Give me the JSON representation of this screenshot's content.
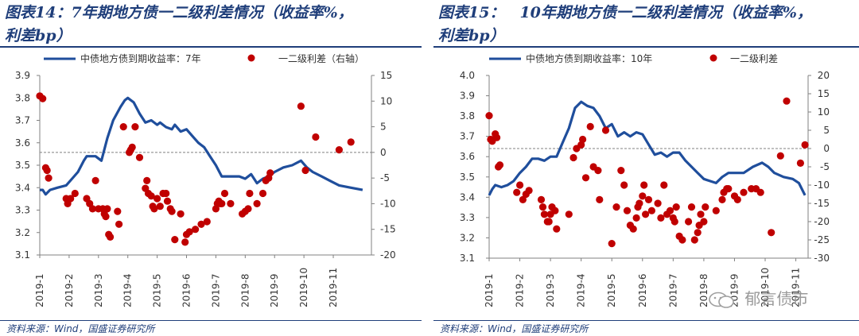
{
  "panels": [
    {
      "title_line1": "图表14：7年期地方债一二级利差情况（收益率%，",
      "title_line2": "利差bp）",
      "legend_line": "中债地方债到期收益率：7年",
      "legend_dot": "一二级利差（右轴）",
      "source": "资料来源：Wind，国盛证券研究所"
    },
    {
      "title_line1": "图表15：　10年期地方债一二级利差情况（收益率%，",
      "title_line2": "利差bp）",
      "legend_line": "中债地方债到期收益率：10年",
      "legend_dot": "一二级利差",
      "source": "资料来源：Wind，国盛证券研究所"
    }
  ],
  "watermark": "郁言债市",
  "colors": {
    "line": "#1f4e9c",
    "dots": "#c00000",
    "title": "#1f3e7a",
    "zero_line": "#808080"
  },
  "chart_data": [
    {
      "type": "line+scatter",
      "title": "图表14：7年期地方债一二级利差情况（收益率%，利差bp）",
      "x_tick_labels": [
        "2019-1",
        "2019-2",
        "2019-3",
        "2019-4",
        "2019-5",
        "2019-6",
        "2019-7",
        "2019-8",
        "2019-9",
        "2019-10",
        "2019-11"
      ],
      "x_range_months": [
        1,
        12.3
      ],
      "y_left": {
        "ticks": [
          "3.1",
          "3.2",
          "3.3",
          "3.4",
          "3.5",
          "3.6",
          "3.7",
          "3.8",
          "3.9"
        ],
        "range": [
          3.1,
          3.9
        ]
      },
      "y_right": {
        "ticks": [
          "-20",
          "-15",
          "-10",
          "-5",
          "0",
          "5",
          "10",
          "15"
        ],
        "range": [
          -20,
          15
        ]
      },
      "reference_line_right": 0,
      "series": [
        {
          "name": "中债地方债到期收益率：7年",
          "axis": "left",
          "points": [
            [
              1.0,
              3.39
            ],
            [
              1.1,
              3.39
            ],
            [
              1.2,
              3.37
            ],
            [
              1.35,
              3.39
            ],
            [
              1.6,
              3.4
            ],
            [
              1.9,
              3.41
            ],
            [
              2.1,
              3.44
            ],
            [
              2.3,
              3.47
            ],
            [
              2.5,
              3.52
            ],
            [
              2.6,
              3.54
            ],
            [
              2.9,
              3.54
            ],
            [
              3.1,
              3.52
            ],
            [
              3.3,
              3.62
            ],
            [
              3.5,
              3.7
            ],
            [
              3.75,
              3.76
            ],
            [
              3.9,
              3.79
            ],
            [
              4.0,
              3.8
            ],
            [
              4.2,
              3.78
            ],
            [
              4.4,
              3.73
            ],
            [
              4.6,
              3.69
            ],
            [
              4.8,
              3.7
            ],
            [
              5.0,
              3.68
            ],
            [
              5.1,
              3.69
            ],
            [
              5.3,
              3.67
            ],
            [
              5.5,
              3.66
            ],
            [
              5.6,
              3.68
            ],
            [
              5.8,
              3.65
            ],
            [
              6.0,
              3.66
            ],
            [
              6.2,
              3.63
            ],
            [
              6.4,
              3.6
            ],
            [
              6.6,
              3.58
            ],
            [
              6.8,
              3.54
            ],
            [
              7.0,
              3.5
            ],
            [
              7.2,
              3.45
            ],
            [
              7.5,
              3.45
            ],
            [
              7.8,
              3.45
            ],
            [
              8.0,
              3.44
            ],
            [
              8.2,
              3.46
            ],
            [
              8.4,
              3.42
            ],
            [
              8.6,
              3.44
            ],
            [
              8.8,
              3.45
            ],
            [
              9.0,
              3.47
            ],
            [
              9.3,
              3.49
            ],
            [
              9.6,
              3.5
            ],
            [
              9.9,
              3.52
            ],
            [
              10.1,
              3.49
            ],
            [
              10.3,
              3.47
            ],
            [
              10.6,
              3.45
            ],
            [
              10.9,
              3.43
            ],
            [
              11.2,
              3.41
            ],
            [
              11.6,
              3.4
            ],
            [
              12.0,
              3.39
            ]
          ]
        },
        {
          "name": "一二级利差（右轴）",
          "axis": "right",
          "points": [
            [
              1.0,
              11
            ],
            [
              1.1,
              10.5
            ],
            [
              1.2,
              -3
            ],
            [
              1.25,
              -3.5
            ],
            [
              1.3,
              -5
            ],
            [
              1.9,
              -9
            ],
            [
              1.95,
              -10
            ],
            [
              2.05,
              -9
            ],
            [
              2.2,
              -8
            ],
            [
              2.6,
              -9
            ],
            [
              2.7,
              -10
            ],
            [
              2.8,
              -11
            ],
            [
              2.9,
              -5.5
            ],
            [
              3.0,
              -11
            ],
            [
              3.15,
              -11
            ],
            [
              3.2,
              -12
            ],
            [
              3.25,
              -12.5
            ],
            [
              3.3,
              -11
            ],
            [
              3.35,
              -16
            ],
            [
              3.4,
              -16.5
            ],
            [
              3.65,
              -11.5
            ],
            [
              3.7,
              -14
            ],
            [
              3.85,
              5
            ],
            [
              4.05,
              0
            ],
            [
              4.1,
              0.5
            ],
            [
              4.15,
              1
            ],
            [
              4.25,
              5
            ],
            [
              4.4,
              -1
            ],
            [
              4.6,
              -7
            ],
            [
              4.65,
              -5.5
            ],
            [
              4.7,
              -8
            ],
            [
              4.8,
              -8.5
            ],
            [
              4.85,
              -10.5
            ],
            [
              4.9,
              -11
            ],
            [
              5.0,
              -9
            ],
            [
              5.1,
              -10.5
            ],
            [
              5.2,
              -8
            ],
            [
              5.3,
              -8
            ],
            [
              5.35,
              -9.5
            ],
            [
              5.45,
              -11
            ],
            [
              5.5,
              -11.5
            ],
            [
              5.6,
              -17
            ],
            [
              5.8,
              -12
            ],
            [
              5.95,
              -17.5
            ],
            [
              6.0,
              -16
            ],
            [
              6.1,
              -15.5
            ],
            [
              6.3,
              -15
            ],
            [
              6.5,
              -14
            ],
            [
              6.7,
              -13.5
            ],
            [
              7.0,
              -11
            ],
            [
              7.05,
              -10
            ],
            [
              7.1,
              -9.5
            ],
            [
              7.15,
              -10
            ],
            [
              7.2,
              -10
            ],
            [
              7.3,
              -8
            ],
            [
              7.5,
              -10
            ],
            [
              7.9,
              -12
            ],
            [
              8.0,
              -11.5
            ],
            [
              8.1,
              -11
            ],
            [
              8.15,
              -8
            ],
            [
              8.4,
              -10
            ],
            [
              8.6,
              -8
            ],
            [
              8.7,
              -5.5
            ],
            [
              8.8,
              -5
            ],
            [
              8.85,
              -4
            ],
            [
              9.9,
              9
            ],
            [
              10.05,
              -3.5
            ],
            [
              10.4,
              3
            ],
            [
              11.2,
              0.5
            ],
            [
              11.6,
              2
            ]
          ]
        }
      ]
    },
    {
      "type": "line+scatter",
      "title": "图表15：10年期地方债一二级利差情况（收益率%，利差bp）",
      "x_tick_labels": [
        "2019-1",
        "2019-2",
        "2019-3",
        "2019-4",
        "2019-5",
        "2019-6",
        "2019-7",
        "2019-8",
        "2019-9",
        "2019-10",
        "2019-11"
      ],
      "x_range_months": [
        1,
        11.4
      ],
      "y_left": {
        "ticks": [
          "3.1",
          "3.2",
          "3.3",
          "3.4",
          "3.5",
          "3.6",
          "3.7",
          "3.8",
          "3.9",
          "4.0"
        ],
        "range": [
          3.1,
          4.0
        ]
      },
      "y_right": {
        "ticks": [
          "-30",
          "-25",
          "-20",
          "-15",
          "-10",
          "-5",
          "0",
          "5",
          "10",
          "15",
          "20"
        ],
        "range": [
          -30,
          20
        ]
      },
      "reference_line_right": 0,
      "series": [
        {
          "name": "中债地方债到期收益率：10年",
          "axis": "left",
          "points": [
            [
              1.0,
              3.41
            ],
            [
              1.1,
              3.44
            ],
            [
              1.2,
              3.46
            ],
            [
              1.4,
              3.45
            ],
            [
              1.6,
              3.46
            ],
            [
              1.8,
              3.48
            ],
            [
              2.0,
              3.52
            ],
            [
              2.2,
              3.55
            ],
            [
              2.4,
              3.59
            ],
            [
              2.6,
              3.59
            ],
            [
              2.8,
              3.58
            ],
            [
              3.0,
              3.6
            ],
            [
              3.2,
              3.6
            ],
            [
              3.4,
              3.67
            ],
            [
              3.6,
              3.74
            ],
            [
              3.8,
              3.84
            ],
            [
              4.0,
              3.87
            ],
            [
              4.2,
              3.85
            ],
            [
              4.4,
              3.84
            ],
            [
              4.6,
              3.8
            ],
            [
              4.8,
              3.74
            ],
            [
              5.0,
              3.76
            ],
            [
              5.2,
              3.7
            ],
            [
              5.4,
              3.72
            ],
            [
              5.6,
              3.7
            ],
            [
              5.8,
              3.72
            ],
            [
              6.0,
              3.71
            ],
            [
              6.2,
              3.66
            ],
            [
              6.4,
              3.61
            ],
            [
              6.6,
              3.62
            ],
            [
              6.8,
              3.6
            ],
            [
              7.0,
              3.62
            ],
            [
              7.2,
              3.62
            ],
            [
              7.4,
              3.58
            ],
            [
              7.6,
              3.55
            ],
            [
              7.8,
              3.52
            ],
            [
              8.0,
              3.49
            ],
            [
              8.2,
              3.48
            ],
            [
              8.4,
              3.47
            ],
            [
              8.6,
              3.5
            ],
            [
              8.8,
              3.52
            ],
            [
              9.0,
              3.52
            ],
            [
              9.3,
              3.52
            ],
            [
              9.6,
              3.55
            ],
            [
              9.9,
              3.57
            ],
            [
              10.1,
              3.55
            ],
            [
              10.3,
              3.52
            ],
            [
              10.6,
              3.5
            ],
            [
              10.9,
              3.49
            ],
            [
              11.1,
              3.47
            ],
            [
              11.3,
              3.41
            ]
          ]
        },
        {
          "name": "一二级利差",
          "axis": "left_right",
          "points": [
            [
              1.0,
              9
            ],
            [
              1.05,
              2.5
            ],
            [
              1.1,
              2
            ],
            [
              1.2,
              4
            ],
            [
              1.25,
              3
            ],
            [
              1.3,
              -5
            ],
            [
              1.35,
              -4.5
            ],
            [
              1.9,
              -12
            ],
            [
              2.0,
              -10
            ],
            [
              2.1,
              -14
            ],
            [
              2.2,
              -12.5
            ],
            [
              2.3,
              -11.5
            ],
            [
              2.7,
              -14
            ],
            [
              2.75,
              -16
            ],
            [
              2.8,
              -18
            ],
            [
              2.9,
              -20
            ],
            [
              2.95,
              -20
            ],
            [
              3.0,
              -18
            ],
            [
              3.05,
              -16
            ],
            [
              3.15,
              -17
            ],
            [
              3.2,
              -22
            ],
            [
              3.6,
              -18
            ],
            [
              3.75,
              -2.5
            ],
            [
              3.85,
              0
            ],
            [
              4.0,
              1
            ],
            [
              4.05,
              2.5
            ],
            [
              4.15,
              -8
            ],
            [
              4.3,
              6
            ],
            [
              4.4,
              -5
            ],
            [
              4.55,
              -6
            ],
            [
              4.6,
              -14
            ],
            [
              4.8,
              5
            ],
            [
              5.0,
              -26
            ],
            [
              5.15,
              -16
            ],
            [
              5.3,
              -6
            ],
            [
              5.4,
              -10
            ],
            [
              5.5,
              -17
            ],
            [
              5.6,
              -21
            ],
            [
              5.7,
              -22
            ],
            [
              5.8,
              -19
            ],
            [
              5.85,
              -16
            ],
            [
              5.9,
              -15
            ],
            [
              6.0,
              -13
            ],
            [
              6.05,
              -10
            ],
            [
              6.1,
              -18
            ],
            [
              6.2,
              -14
            ],
            [
              6.3,
              -17
            ],
            [
              6.5,
              -15
            ],
            [
              6.6,
              -19
            ],
            [
              6.7,
              -10
            ],
            [
              6.8,
              -18
            ],
            [
              6.9,
              -17
            ],
            [
              7.0,
              -19
            ],
            [
              7.05,
              -20
            ],
            [
              7.1,
              -16
            ],
            [
              7.2,
              -24
            ],
            [
              7.3,
              -25
            ],
            [
              7.5,
              -20
            ],
            [
              7.6,
              -16
            ],
            [
              7.7,
              -25
            ],
            [
              7.8,
              -23
            ],
            [
              7.85,
              -21
            ],
            [
              7.9,
              -18
            ],
            [
              8.0,
              -20
            ],
            [
              8.05,
              -16
            ],
            [
              8.4,
              -17
            ],
            [
              8.6,
              -14
            ],
            [
              8.65,
              -12
            ],
            [
              8.75,
              -11
            ],
            [
              8.8,
              -11
            ],
            [
              9.0,
              -13
            ],
            [
              9.1,
              -14
            ],
            [
              9.3,
              -12
            ],
            [
              9.55,
              -11
            ],
            [
              9.7,
              -11
            ],
            [
              9.85,
              -12
            ],
            [
              10.2,
              -23
            ],
            [
              10.5,
              -2
            ],
            [
              10.7,
              13
            ],
            [
              11.15,
              -4
            ],
            [
              11.3,
              1
            ]
          ]
        }
      ]
    }
  ]
}
